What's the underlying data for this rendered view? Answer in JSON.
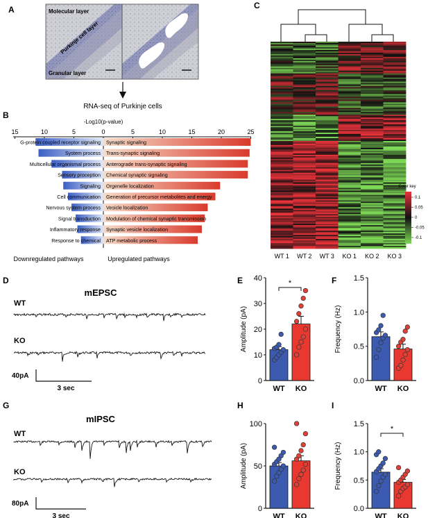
{
  "panel_letters": {
    "A": "A",
    "B": "B",
    "C": "C",
    "D": "D",
    "E": "E",
    "F": "F",
    "G": "G",
    "H": "H",
    "I": "I"
  },
  "panel_a": {
    "labels": {
      "molecular": "Molecular layer",
      "purkinje": "Purkinje cell layer",
      "granular": "Granular layer"
    },
    "caption": "RNA-seq of Purkinje cells"
  },
  "panel_b": {
    "axis_title": "-Log10(p-value)",
    "ticks": [
      "15",
      "10",
      "5",
      "0",
      "5",
      "10",
      "15",
      "20",
      "25"
    ],
    "down_caption": "Downregulated pathways",
    "up_caption": "Upregulated pathways"
  },
  "panel_c": {
    "samples": [
      "WT 1",
      "WT 2",
      "WT 3",
      "KO 1",
      "KO 2",
      "KO 3"
    ],
    "colorkey_title": "Color key",
    "colorkey_ticks": [
      "0.1",
      "0.05",
      "0",
      "-0.05",
      "-0.1"
    ],
    "colors": {
      "high": "#e8323a",
      "mid": "#111111",
      "low": "#7ed957"
    }
  },
  "traces": {
    "mepsc_title": "mEPSC",
    "mipsc_title": "mIPSC",
    "wt_label": "WT",
    "ko_label": "KO",
    "mepsc_scale_y": "40pA",
    "mepsc_scale_x": "3 sec",
    "mipsc_scale_y": "80pA",
    "mipsc_scale_x": "3 sec"
  },
  "colors": {
    "wt_bar": "#3c5bb0",
    "ko_bar": "#e8382f",
    "wt_dot": "#3c5bb0",
    "ko_dot": "#e04035"
  },
  "chart_data": [
    {
      "type": "bar",
      "panel": "B",
      "title": "-Log10(p-value)",
      "orientation": "horizontal diverging",
      "xlim_left": [
        0,
        15
      ],
      "xlim_right": [
        0,
        25
      ],
      "down_series": {
        "name": "Downregulated pathways",
        "categories": [
          "G-protein coupled receptor signaling",
          "System process",
          "Multicellular organismal process",
          "Sensory proception",
          "Signaling",
          "Cell communication",
          "Nervous system process",
          "Signal transduction",
          "Inflammatory response",
          "Response to chemical"
        ],
        "values": [
          11.5,
          11.0,
          8.8,
          7.0,
          6.8,
          6.0,
          5.4,
          4.7,
          4.4,
          3.8
        ]
      },
      "up_series": {
        "name": "Upregulated pathways",
        "categories": [
          "Synaptic signaling",
          "Trans-synaptic signaling",
          "Anterograde trans-synaptic signaling",
          "Chemical synaptic signaling",
          "Orgenelle localization",
          "Generation of precursor metabolites and energy",
          "Vesicle localization",
          "Modulation of chemical synaptic transmission",
          "Synaptic vesicle localization",
          "ATP metabolic process"
        ],
        "values": [
          25.0,
          24.8,
          24.5,
          24.5,
          19.8,
          19.0,
          17.7,
          17.2,
          16.7,
          16.0
        ]
      }
    },
    {
      "type": "bar",
      "panel": "E",
      "title": "",
      "ylabel": "Amplitude (pA)",
      "categories": [
        "WT",
        "KO"
      ],
      "values": [
        12,
        22
      ],
      "errors": [
        1.2,
        3.0
      ],
      "points": [
        [
          8,
          9,
          10,
          11,
          12,
          12.5,
          13,
          14,
          18
        ],
        [
          10,
          13,
          15,
          17,
          20,
          23,
          26,
          29,
          32,
          35
        ]
      ],
      "ylim": [
        0,
        40
      ],
      "yticks": [
        "0",
        "10",
        "20",
        "30",
        "40"
      ],
      "significance": "*"
    },
    {
      "type": "bar",
      "panel": "F",
      "title": "",
      "ylabel": "Frequency (Hz)",
      "categories": [
        "WT",
        "KO"
      ],
      "values": [
        0.64,
        0.46
      ],
      "errors": [
        0.07,
        0.07
      ],
      "points": [
        [
          0.34,
          0.45,
          0.55,
          0.62,
          0.66,
          0.7,
          0.74,
          0.8,
          0.95
        ],
        [
          0.18,
          0.22,
          0.3,
          0.38,
          0.45,
          0.5,
          0.56,
          0.6,
          0.72,
          0.78
        ]
      ],
      "ylim": [
        0,
        1.5
      ],
      "yticks": [
        "0.0",
        "0.5",
        "1.0",
        "1.5"
      ],
      "significance": ""
    },
    {
      "type": "bar",
      "panel": "H",
      "title": "",
      "ylabel": "Amplitude (pA)",
      "categories": [
        "WT",
        "KO"
      ],
      "values": [
        50,
        56
      ],
      "errors": [
        4,
        6
      ],
      "points": [
        [
          32,
          38,
          42,
          46,
          50,
          52,
          55,
          58,
          62,
          66,
          72
        ],
        [
          28,
          35,
          40,
          45,
          52,
          58,
          62,
          68,
          75,
          88,
          100
        ]
      ],
      "ylim": [
        0,
        100
      ],
      "yticks": [
        "0",
        "50",
        "100"
      ],
      "significance": ""
    },
    {
      "type": "bar",
      "panel": "I",
      "title": "",
      "ylabel": "Frequency (Hz)",
      "categories": [
        "WT",
        "KO"
      ],
      "values": [
        0.64,
        0.46
      ],
      "errors": [
        0.06,
        0.05
      ],
      "points": [
        [
          0.3,
          0.4,
          0.48,
          0.55,
          0.6,
          0.65,
          0.7,
          0.75,
          0.8,
          0.88,
          0.95,
          1.0
        ],
        [
          0.22,
          0.3,
          0.35,
          0.38,
          0.42,
          0.46,
          0.5,
          0.55,
          0.6,
          0.66,
          0.72
        ]
      ],
      "ylim": [
        0,
        1.5
      ],
      "yticks": [
        "0.0",
        "0.5",
        "1.0",
        "1.5"
      ],
      "significance": "*"
    }
  ]
}
